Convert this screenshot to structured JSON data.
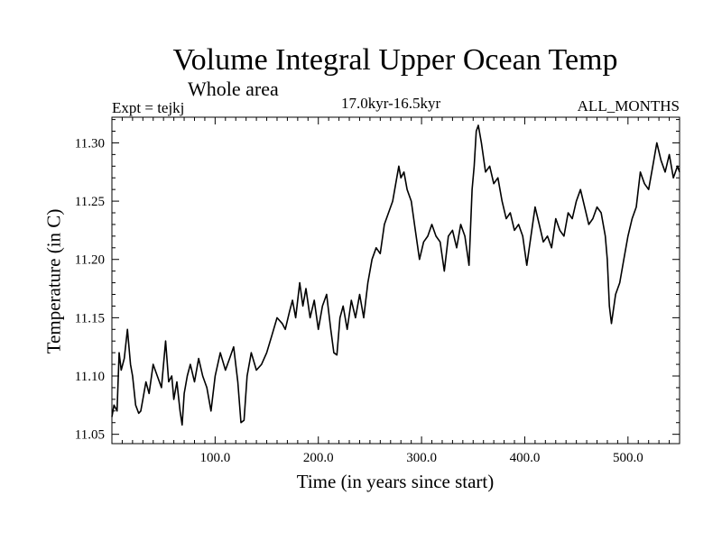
{
  "chart_data": {
    "type": "line",
    "title": "Volume Integral Upper Ocean Temp",
    "subtitle": "Whole area",
    "left_annotation": "Expt = tejkj",
    "center_annotation": "17.0kyr-16.5kyr",
    "right_annotation": "ALL_MONTHS",
    "xlabel": "Time (in years since start)",
    "ylabel": "Temperature (in C)",
    "xlim": [
      0,
      550
    ],
    "ylim": [
      11.042,
      11.322
    ],
    "xticks": [
      100.0,
      200.0,
      300.0,
      400.0,
      500.0
    ],
    "xtick_labels": [
      "100.0",
      "200.0",
      "300.0",
      "400.0",
      "500.0"
    ],
    "yticks": [
      11.05,
      11.1,
      11.15,
      11.2,
      11.25,
      11.3
    ],
    "ytick_labels": [
      "11.05",
      "11.10",
      "11.15",
      "11.20",
      "11.25",
      "11.30"
    ],
    "grid": false,
    "series": [
      {
        "name": "Temperature",
        "x": [
          0,
          2,
          5,
          7,
          9,
          12,
          15,
          18,
          20,
          23,
          26,
          28,
          30,
          33,
          36,
          40,
          44,
          48,
          52,
          55,
          58,
          60,
          63,
          66,
          68,
          70,
          73,
          76,
          80,
          84,
          88,
          92,
          96,
          100,
          105,
          110,
          114,
          118,
          122,
          125,
          128,
          131,
          135,
          140,
          145,
          150,
          155,
          160,
          165,
          168,
          172,
          175,
          178,
          182,
          185,
          188,
          192,
          196,
          200,
          204,
          208,
          212,
          215,
          218,
          221,
          224,
          228,
          232,
          236,
          240,
          244,
          248,
          252,
          256,
          260,
          264,
          268,
          272,
          275,
          278,
          280,
          283,
          286,
          290,
          294,
          298,
          302,
          306,
          310,
          314,
          318,
          322,
          326,
          330,
          334,
          338,
          342,
          346,
          349,
          351,
          353,
          355,
          358,
          362,
          366,
          370,
          374,
          378,
          382,
          386,
          390,
          394,
          398,
          402,
          406,
          410,
          414,
          418,
          422,
          426,
          430,
          434,
          438,
          442,
          446,
          450,
          454,
          458,
          462,
          466,
          470,
          474,
          478,
          480,
          482,
          484,
          488,
          492,
          496,
          500,
          504,
          508,
          512,
          516,
          520,
          524,
          528,
          532,
          536,
          540,
          544,
          548,
          550
        ],
        "values": [
          11.065,
          11.075,
          11.07,
          11.12,
          11.105,
          11.115,
          11.14,
          11.11,
          11.1,
          11.075,
          11.068,
          11.07,
          11.08,
          11.095,
          11.085,
          11.11,
          11.1,
          11.09,
          11.13,
          11.095,
          11.1,
          11.08,
          11.095,
          11.07,
          11.058,
          11.085,
          11.1,
          11.11,
          11.095,
          11.115,
          11.1,
          11.09,
          11.07,
          11.1,
          11.12,
          11.105,
          11.115,
          11.125,
          11.095,
          11.06,
          11.062,
          11.1,
          11.12,
          11.105,
          11.11,
          11.12,
          11.135,
          11.15,
          11.145,
          11.14,
          11.155,
          11.165,
          11.15,
          11.18,
          11.16,
          11.175,
          11.15,
          11.165,
          11.14,
          11.16,
          11.17,
          11.14,
          11.12,
          11.118,
          11.15,
          11.16,
          11.14,
          11.165,
          11.15,
          11.17,
          11.15,
          11.18,
          11.2,
          11.21,
          11.205,
          11.23,
          11.24,
          11.25,
          11.265,
          11.28,
          11.27,
          11.275,
          11.26,
          11.25,
          11.225,
          11.2,
          11.215,
          11.22,
          11.23,
          11.22,
          11.215,
          11.19,
          11.22,
          11.225,
          11.21,
          11.23,
          11.22,
          11.195,
          11.26,
          11.28,
          11.31,
          11.315,
          11.3,
          11.275,
          11.28,
          11.265,
          11.27,
          11.25,
          11.235,
          11.24,
          11.225,
          11.23,
          11.22,
          11.195,
          11.22,
          11.245,
          11.23,
          11.215,
          11.22,
          11.21,
          11.235,
          11.225,
          11.22,
          11.24,
          11.235,
          11.25,
          11.26,
          11.245,
          11.23,
          11.235,
          11.245,
          11.24,
          11.22,
          11.2,
          11.16,
          11.145,
          11.17,
          11.18,
          11.2,
          11.22,
          11.235,
          11.245,
          11.275,
          11.265,
          11.26,
          11.28,
          11.3,
          11.285,
          11.275,
          11.29,
          11.27,
          11.28,
          11.275
        ]
      }
    ]
  }
}
